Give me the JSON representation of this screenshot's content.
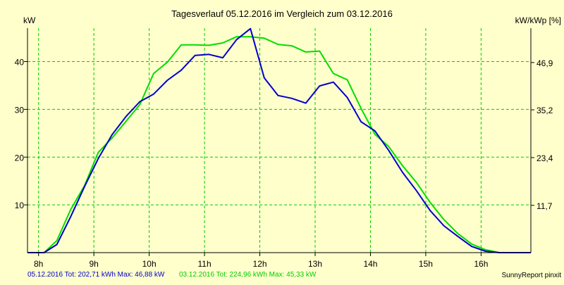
{
  "chart_data": {
    "type": "line",
    "title": "Tagesverlauf 05.12.2016 im Vergleich zum 03.12.2016",
    "ylabel_left": "kW",
    "ylabel_right": "kW/kWp [%]",
    "xlim": [
      7.8,
      16.9
    ],
    "ylim": [
      0,
      47
    ],
    "x_ticks": [
      8,
      9,
      10,
      11,
      12,
      13,
      14,
      15,
      16
    ],
    "x_tick_labels": [
      "8h",
      "9h",
      "10h",
      "11h",
      "12h",
      "13h",
      "14h",
      "15h",
      "16h"
    ],
    "y_ticks_left": [
      10,
      20,
      30,
      40
    ],
    "y_ticks_left_labels": [
      "10",
      "20",
      "30",
      "40"
    ],
    "y_ticks_right": [
      11.7,
      23.4,
      35.2,
      46.9
    ],
    "y_ticks_right_labels": [
      "11,7",
      "23,4",
      "35,2",
      "46,9"
    ],
    "y_ticks_right_positions": [
      9.9,
      19.9,
      29.9,
      39.8
    ],
    "grid": true,
    "series": [
      {
        "name": "05.12.2016",
        "color": "#0000cc",
        "x": [
          7.8,
          8.1,
          8.33,
          8.58,
          8.83,
          9.08,
          9.33,
          9.58,
          9.83,
          10.08,
          10.33,
          10.58,
          10.83,
          11.08,
          11.33,
          11.58,
          11.83,
          12.08,
          12.33,
          12.58,
          12.83,
          13.08,
          13.33,
          13.58,
          13.83,
          14.08,
          14.33,
          14.58,
          14.83,
          15.08,
          15.33,
          15.58,
          15.83,
          16.08,
          16.33,
          16.58,
          16.9
        ],
        "y": [
          0,
          0,
          1.7,
          7.5,
          13.8,
          19.7,
          24.7,
          28.5,
          31.6,
          33.2,
          36.1,
          38.2,
          41.3,
          41.5,
          40.8,
          44.6,
          46.9,
          36.6,
          32.9,
          32.3,
          31.3,
          34.9,
          35.7,
          32.5,
          27.4,
          25.5,
          21.4,
          16.8,
          13.0,
          8.8,
          5.6,
          3.4,
          1.3,
          0.3,
          0,
          0,
          0
        ]
      },
      {
        "name": "03.12.2016",
        "color": "#00dd00",
        "x": [
          7.8,
          8.1,
          8.33,
          8.58,
          8.83,
          9.08,
          9.33,
          9.58,
          9.83,
          10.08,
          10.33,
          10.58,
          10.83,
          11.08,
          11.33,
          11.58,
          11.83,
          12.08,
          12.33,
          12.58,
          12.83,
          13.08,
          13.33,
          13.58,
          13.83,
          14.08,
          14.33,
          14.58,
          14.83,
          15.08,
          15.33,
          15.58,
          15.83,
          16.08,
          16.33,
          16.58,
          16.9
        ],
        "y": [
          0,
          0,
          2.5,
          9.0,
          14.0,
          21.0,
          24.0,
          27.5,
          31.0,
          37.5,
          39.9,
          43.5,
          43.5,
          43.4,
          43.9,
          45.2,
          45.2,
          44.9,
          43.6,
          43.3,
          42.0,
          42.2,
          37.5,
          36.2,
          30.2,
          24.8,
          22.2,
          18.2,
          14.7,
          10.5,
          6.9,
          4.0,
          1.8,
          0.6,
          0,
          0,
          0
        ]
      }
    ],
    "footer": {
      "series1_info": "05.12.2016 Tot: 202,71 kWh Max: 46,88 kW",
      "series2_info": "03.12.2016 Tot: 224,96 kWh Max: 45,33 kW",
      "credit": "SunnyReport pinxit"
    }
  }
}
